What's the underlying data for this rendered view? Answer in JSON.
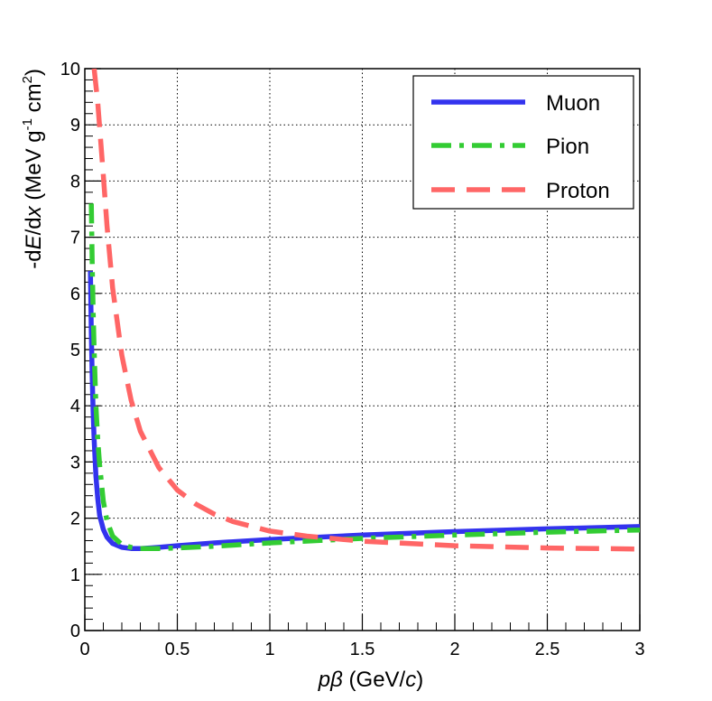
{
  "chart_data": {
    "type": "line",
    "title": "",
    "xlabel": {
      "p": "p",
      "beta": "β",
      "unit_open": " (GeV/",
      "unit_c": "c",
      "unit_close": ")"
    },
    "ylabel": {
      "d1": "-d",
      "E": "E",
      "slash_d": "/d",
      "x": "x",
      "unit_a": " (MeV g",
      "sup1": "-1",
      "unit_b": " cm",
      "sup2": "2",
      "unit_c": ")"
    },
    "xlim": [
      0,
      3
    ],
    "ylim": [
      0,
      10
    ],
    "xticks": [
      {
        "value": 0,
        "label": "0"
      },
      {
        "value": 0.5,
        "label": "0.5"
      },
      {
        "value": 1,
        "label": "1"
      },
      {
        "value": 1.5,
        "label": "1.5"
      },
      {
        "value": 2,
        "label": "2"
      },
      {
        "value": 2.5,
        "label": "2.5"
      },
      {
        "value": 3,
        "label": "3"
      }
    ],
    "yticks": [
      {
        "value": 0,
        "label": "0"
      },
      {
        "value": 1,
        "label": "1"
      },
      {
        "value": 2,
        "label": "2"
      },
      {
        "value": 3,
        "label": "3"
      },
      {
        "value": 4,
        "label": "4"
      },
      {
        "value": 5,
        "label": "5"
      },
      {
        "value": 6,
        "label": "6"
      },
      {
        "value": 7,
        "label": "7"
      },
      {
        "value": 8,
        "label": "8"
      },
      {
        "value": 9,
        "label": "9"
      },
      {
        "value": 10,
        "label": "10"
      }
    ],
    "grid": true,
    "legend": "top-right",
    "series": [
      {
        "name": "Muon",
        "color": "#3333ee",
        "style": "solid",
        "x": [
          0.03,
          0.035,
          0.04,
          0.045,
          0.05,
          0.06,
          0.07,
          0.08,
          0.1,
          0.12,
          0.15,
          0.2,
          0.25,
          0.3,
          0.35,
          0.4,
          0.5,
          0.7,
          1.0,
          1.5,
          2.0,
          2.5,
          3.0
        ],
        "y": [
          6.4,
          5.3,
          4.5,
          3.9,
          3.4,
          2.75,
          2.35,
          2.05,
          1.8,
          1.66,
          1.55,
          1.48,
          1.46,
          1.46,
          1.47,
          1.48,
          1.51,
          1.56,
          1.62,
          1.7,
          1.76,
          1.81,
          1.85
        ]
      },
      {
        "name": "Pion",
        "color": "#33cc33",
        "style": "dash-dot",
        "x": [
          0.035,
          0.04,
          0.045,
          0.05,
          0.06,
          0.07,
          0.08,
          0.1,
          0.12,
          0.15,
          0.2,
          0.25,
          0.3,
          0.4,
          0.5,
          0.7,
          1.0,
          1.5,
          2.0,
          2.5,
          3.0
        ],
        "y": [
          7.6,
          6.5,
          5.7,
          5.0,
          4.0,
          3.4,
          2.95,
          2.3,
          1.95,
          1.68,
          1.53,
          1.48,
          1.46,
          1.46,
          1.47,
          1.5,
          1.56,
          1.64,
          1.7,
          1.75,
          1.79
        ]
      },
      {
        "name": "Proton",
        "color": "#ff6666",
        "style": "dashed",
        "x": [
          0.05,
          0.07,
          0.1,
          0.12,
          0.15,
          0.2,
          0.25,
          0.3,
          0.4,
          0.5,
          0.6,
          0.7,
          0.8,
          1.0,
          1.2,
          1.5,
          2.0,
          2.5,
          3.0
        ],
        "y": [
          10.0,
          9.4,
          8.1,
          7.2,
          6.1,
          4.9,
          4.1,
          3.55,
          2.9,
          2.5,
          2.25,
          2.07,
          1.94,
          1.77,
          1.68,
          1.59,
          1.51,
          1.47,
          1.45
        ]
      }
    ]
  }
}
